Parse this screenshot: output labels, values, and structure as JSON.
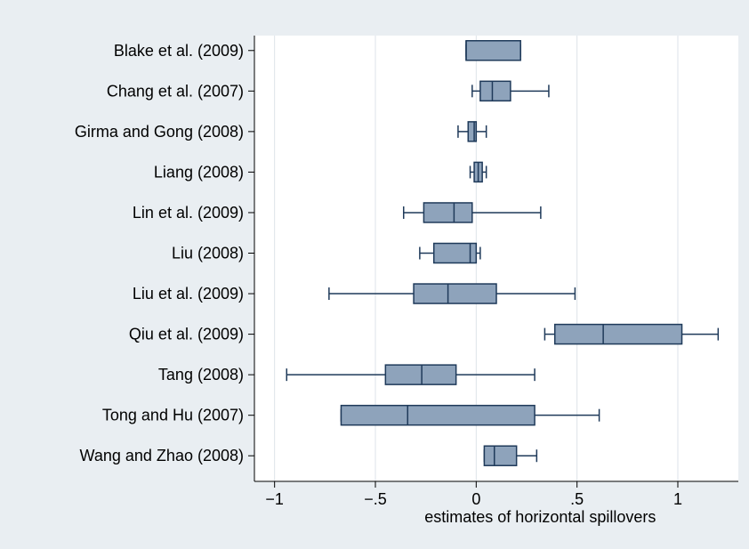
{
  "chart_data": {
    "type": "boxplot",
    "orientation": "horizontal",
    "title": "",
    "xlabel": "estimates of horizontal spillovers",
    "ylabel": "",
    "xlim": [
      -1.1,
      1.3
    ],
    "xticks": [
      -1,
      -0.5,
      0,
      0.5,
      1
    ],
    "xtick_labels": [
      "−1",
      "−.5",
      "0",
      ".5",
      "1"
    ],
    "grid": "vertical",
    "categories": [
      "Blake et al. (2009)",
      "Chang et al. (2007)",
      "Girma and Gong (2008)",
      "Liang (2008)",
      "Lin et al. (2009)",
      "Liu (2008)",
      "Liu et al. (2009)",
      "Qiu et al. (2009)",
      "Tang (2008)",
      "Tong and Hu (2007)",
      "Wang and Zhao (2008)"
    ],
    "boxes": [
      {
        "whisker_low": -0.05,
        "q1": -0.05,
        "median": -0.05,
        "q3": 0.22,
        "whisker_high": 0.22
      },
      {
        "whisker_low": -0.02,
        "q1": 0.02,
        "median": 0.08,
        "q3": 0.17,
        "whisker_high": 0.36
      },
      {
        "whisker_low": -0.09,
        "q1": -0.04,
        "median": -0.01,
        "q3": 0.0,
        "whisker_high": 0.05
      },
      {
        "whisker_low": -0.03,
        "q1": -0.01,
        "median": 0.01,
        "q3": 0.03,
        "whisker_high": 0.05
      },
      {
        "whisker_low": -0.36,
        "q1": -0.26,
        "median": -0.11,
        "q3": -0.02,
        "whisker_high": 0.32
      },
      {
        "whisker_low": -0.28,
        "q1": -0.21,
        "median": -0.03,
        "q3": 0.0,
        "whisker_high": 0.02
      },
      {
        "whisker_low": -0.73,
        "q1": -0.31,
        "median": -0.14,
        "q3": 0.1,
        "whisker_high": 0.49
      },
      {
        "whisker_low": 0.34,
        "q1": 0.39,
        "median": 0.63,
        "q3": 1.02,
        "whisker_high": 1.2
      },
      {
        "whisker_low": -0.94,
        "q1": -0.45,
        "median": -0.27,
        "q3": -0.1,
        "whisker_high": 0.29
      },
      {
        "whisker_low": -0.67,
        "q1": -0.67,
        "median": -0.34,
        "q3": 0.29,
        "whisker_high": 0.61
      },
      {
        "whisker_low": 0.04,
        "q1": 0.04,
        "median": 0.09,
        "q3": 0.2,
        "whisker_high": 0.3
      }
    ],
    "colors": {
      "outer_background": "#e9eef2",
      "plot_background": "#ffffff",
      "box_fill": "#8ea3bb",
      "box_stroke": "#1f3a5a",
      "grid": "#dde3e8"
    }
  }
}
